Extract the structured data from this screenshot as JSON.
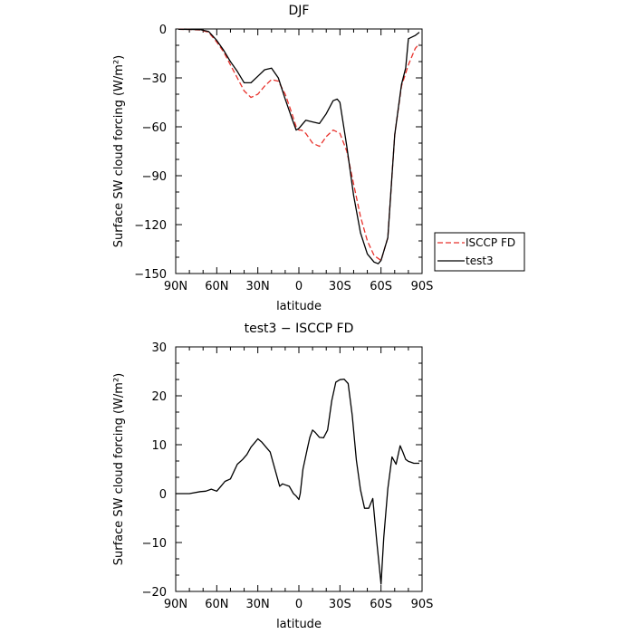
{
  "chart_data": [
    {
      "type": "line",
      "title": "DJF",
      "xlabel": "latitude",
      "ylabel": "Surface SW cloud forcing (W/m²)",
      "xlim": [
        90,
        -90
      ],
      "ylim": [
        -150,
        0
      ],
      "xticks": [
        90,
        60,
        30,
        0,
        -30,
        -60,
        -90
      ],
      "xtick_labels": [
        "90N",
        "60N",
        "30N",
        "0",
        "30S",
        "60S",
        "90S"
      ],
      "yticks": [
        0,
        -30,
        -60,
        -90,
        -120,
        -150
      ],
      "ytick_labels": [
        "0",
        "−30",
        "−60",
        "−90",
        "−120",
        "−150"
      ],
      "legend_position": "right",
      "grid": false,
      "series": [
        {
          "name": "ISCCP FD",
          "color": "#e8322c",
          "dash": true,
          "x": [
            88,
            80,
            72,
            66,
            60,
            55,
            50,
            45,
            40,
            35,
            30,
            25,
            20,
            15,
            10,
            5,
            2,
            0,
            -2,
            -5,
            -10,
            -15,
            -20,
            -25,
            -30,
            -35,
            -40,
            -45,
            -50,
            -55,
            -60,
            -65,
            -70,
            -75,
            -80,
            -85,
            -88
          ],
          "y": [
            -0.2,
            -0.3,
            -0.6,
            -2,
            -8,
            -14,
            -22,
            -30,
            -38,
            -42,
            -40,
            -35,
            -31,
            -32,
            -40,
            -52,
            -60,
            -62,
            -62,
            -64,
            -70,
            -72,
            -66,
            -62,
            -64,
            -75,
            -95,
            -115,
            -130,
            -139,
            -142,
            -128,
            -65,
            -35,
            -22,
            -12,
            -9
          ]
        },
        {
          "name": "test3",
          "color": "#000000",
          "dash": false,
          "x": [
            88,
            80,
            72,
            66,
            60,
            55,
            50,
            45,
            40,
            35,
            30,
            25,
            20,
            15,
            10,
            5,
            2,
            0,
            -2,
            -5,
            -10,
            -15,
            -20,
            -25,
            -28,
            -30,
            -35,
            -40,
            -45,
            -50,
            -55,
            -58,
            -60,
            -65,
            -70,
            -75,
            -78,
            -80,
            -85,
            -88
          ],
          "y": [
            -0.2,
            -0.3,
            -0.4,
            -1.5,
            -7,
            -13,
            -20,
            -26,
            -33,
            -33,
            -29,
            -25,
            -24,
            -30,
            -43,
            -55,
            -62,
            -61,
            -59,
            -56,
            -57,
            -58,
            -52,
            -44,
            -43,
            -45,
            -72,
            -102,
            -125,
            -138,
            -143,
            -144,
            -142,
            -128,
            -65,
            -34,
            -24,
            -6,
            -4,
            -2
          ]
        }
      ]
    },
    {
      "type": "line",
      "title": "test3 − ISCCP FD",
      "xlabel": "latitude",
      "ylabel": "Surface SW cloud forcing (W/m²)",
      "xlim": [
        90,
        -90
      ],
      "ylim": [
        -20,
        30
      ],
      "xticks": [
        90,
        60,
        30,
        0,
        -30,
        -60,
        -90
      ],
      "xtick_labels": [
        "90N",
        "60N",
        "30N",
        "0",
        "30S",
        "60S",
        "90S"
      ],
      "yticks": [
        30,
        20,
        10,
        0,
        -10,
        -20
      ],
      "ytick_labels": [
        "30",
        "20",
        "10",
        "0",
        "−10",
        "−20"
      ],
      "grid": false,
      "series": [
        {
          "color": "#000000",
          "x": [
            90,
            84,
            80,
            72,
            68,
            64,
            60,
            57,
            54,
            50,
            45,
            41,
            38,
            35,
            32,
            30,
            27,
            24,
            21,
            19,
            17,
            14,
            12,
            10,
            7,
            4,
            2,
            0,
            -1,
            -3,
            -6,
            -8,
            -10,
            -12,
            -15,
            -18,
            -21,
            -24,
            -27,
            -30,
            -33,
            -36,
            -39,
            -42,
            -45,
            -48,
            -51,
            -54,
            -57,
            -60,
            -62,
            -65,
            -68,
            -71,
            -74,
            -76,
            -78,
            -80,
            -82,
            -84,
            -86,
            -88
          ],
          "y": [
            0,
            0,
            0,
            0.4,
            0.5,
            0.9,
            0.5,
            1.5,
            2.5,
            3,
            6,
            7,
            8,
            9.5,
            10.5,
            11.2,
            10.5,
            9.5,
            8.5,
            6.5,
            4.5,
            1.5,
            2,
            1.8,
            1.5,
            0,
            -0.5,
            -1.2,
            0,
            5,
            9,
            11.5,
            13,
            12.5,
            11.5,
            11.4,
            13,
            19,
            22.8,
            23.3,
            23.4,
            22.5,
            16,
            6.8,
            0.8,
            -3,
            -3,
            -1,
            -10,
            -18.5,
            -9,
            1,
            7.5,
            6,
            9.8,
            8.5,
            7,
            6.6,
            6.4,
            6.2,
            6.2,
            6.2
          ]
        }
      ]
    }
  ],
  "legend": {
    "items": [
      "ISCCP FD",
      "test3"
    ]
  }
}
